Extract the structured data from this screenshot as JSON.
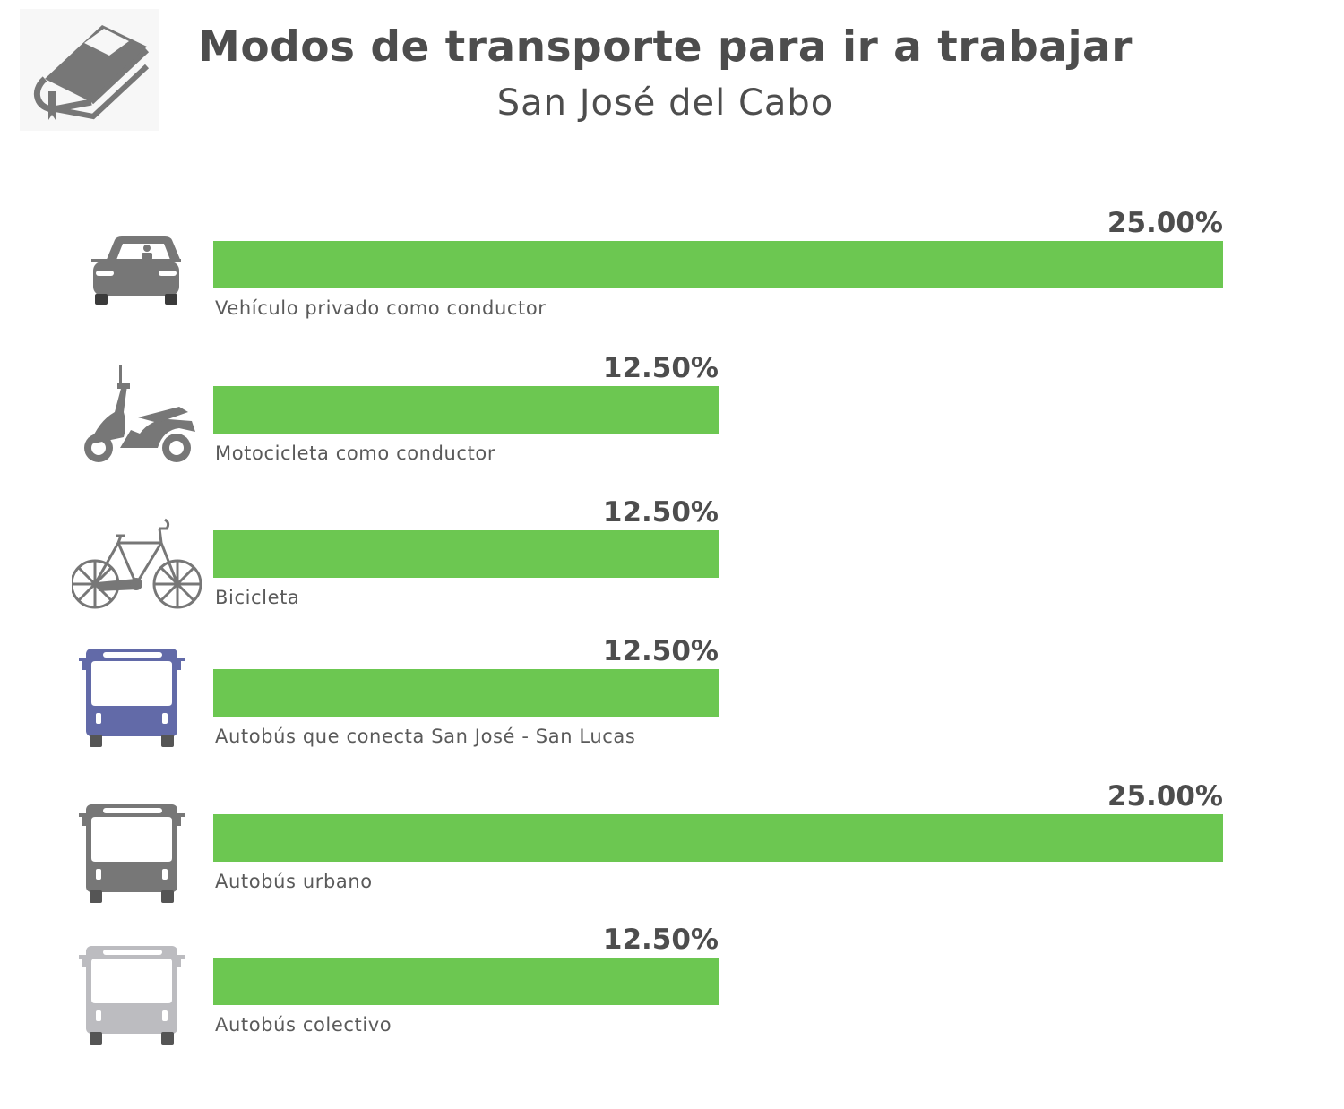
{
  "colors": {
    "bar": "#6cc751",
    "text": "#4d4d4d",
    "icon_gray": "#777777",
    "icon_blue": "#626aa8",
    "icon_light": "#bcbcc0"
  },
  "logo": {
    "icon": "book-icon"
  },
  "chart_data": {
    "type": "bar",
    "orientation": "horizontal",
    "title": "Modos de transporte para ir a trabajar",
    "subtitle": "San José del Cabo",
    "categories": [
      "Vehículo privado como conductor",
      "Motocicleta como conductor",
      "Bicicleta",
      "Autobús que conecta San José - San Lucas",
      "Autobús urbano",
      "Autobús colectivo"
    ],
    "values": [
      25.0,
      12.5,
      12.5,
      12.5,
      25.0,
      12.5
    ],
    "value_labels": [
      "25.00%",
      "12.50%",
      "12.50%",
      "12.50%",
      "25.00%",
      "12.50%"
    ],
    "icons": [
      "car-icon",
      "motorcycle-icon",
      "bicycle-icon",
      "bus-blue-icon",
      "bus-gray-icon",
      "bus-light-icon"
    ],
    "xlim": [
      0,
      25
    ],
    "grid": false
  }
}
